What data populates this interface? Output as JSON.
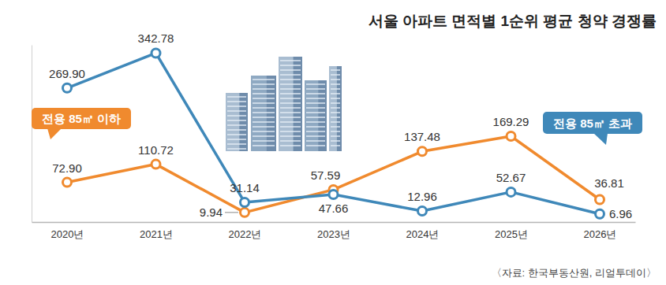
{
  "chart_data": {
    "type": "line",
    "title": "서울 아파트 면적별 1순위 평균 청약 경쟁률",
    "source": "〈자료: 한국부동산원, 리얼투데이〉",
    "categories": [
      "2020년",
      "2021년",
      "2022년",
      "2023년",
      "2024년",
      "2025년",
      "2026년"
    ],
    "series": [
      {
        "name": "전용 85㎡ 이하",
        "color": "#f08a2e",
        "marker": "circle",
        "values": [
          72.9,
          110.72,
          9.94,
          57.59,
          137.48,
          169.29,
          36.81
        ],
        "value_labels": [
          "72.90",
          "110.72",
          "9.94",
          "57.59",
          "137.48",
          "169.29",
          "36.81"
        ]
      },
      {
        "name": "전용 85㎡ 초과",
        "color": "#3f88b9",
        "marker": "circle",
        "values": [
          269.9,
          342.78,
          31.14,
          47.66,
          12.96,
          52.67,
          6.96
        ],
        "value_labels": [
          "269.90",
          "342.78",
          "31.14",
          "47.66",
          "12.96",
          "52.67",
          "6.96"
        ]
      }
    ],
    "ylim": [
      -10,
      360
    ],
    "yticks": [],
    "grid": false,
    "data_labels": true,
    "tick_labels": "x"
  }
}
